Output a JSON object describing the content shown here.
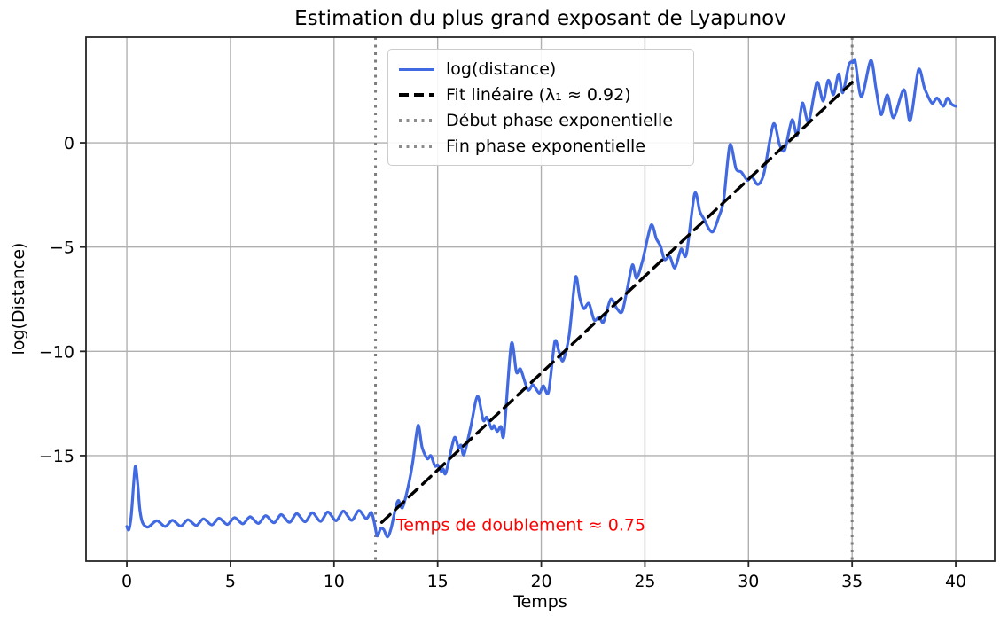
{
  "chart_data": {
    "type": "line",
    "title": "Estimation du plus grand exposant de Lyapunov",
    "xlabel": "Temps",
    "ylabel": "log(Distance)",
    "xlim": [
      -1.97,
      41.88
    ],
    "ylim": [
      -20.06,
      5.06
    ],
    "xticks": [
      0,
      5,
      10,
      15,
      20,
      25,
      30,
      35,
      40
    ],
    "yticks": [
      0,
      -5,
      -10,
      -15
    ],
    "grid": true,
    "grid_color": "#b0b0b0",
    "spine_color": "#262626",
    "legend_position": "upper-left-inside",
    "series": [
      {
        "name": "log(distance)",
        "style": "solid",
        "color": "#4169e1",
        "width": 3.2,
        "points": [
          [
            0,
            -18.4
          ],
          [
            0.1,
            -18.55
          ],
          [
            0.22,
            -17.8
          ],
          [
            0.4,
            -15.55
          ],
          [
            0.52,
            -16.3
          ],
          [
            0.62,
            -17.5
          ],
          [
            0.72,
            -18.1
          ],
          [
            0.85,
            -18.35
          ],
          [
            1.05,
            -18.42
          ],
          [
            1.45,
            -18.12
          ],
          [
            1.85,
            -18.4
          ],
          [
            2.2,
            -18.1
          ],
          [
            2.6,
            -18.38
          ],
          [
            2.95,
            -18.07
          ],
          [
            3.35,
            -18.35
          ],
          [
            3.7,
            -18.03
          ],
          [
            4.1,
            -18.32
          ],
          [
            4.45,
            -18.0
          ],
          [
            4.85,
            -18.3
          ],
          [
            5.2,
            -17.97
          ],
          [
            5.6,
            -18.27
          ],
          [
            5.95,
            -17.93
          ],
          [
            6.35,
            -18.25
          ],
          [
            6.7,
            -17.88
          ],
          [
            7.1,
            -18.22
          ],
          [
            7.45,
            -17.83
          ],
          [
            7.85,
            -18.2
          ],
          [
            8.2,
            -17.78
          ],
          [
            8.6,
            -18.17
          ],
          [
            8.95,
            -17.74
          ],
          [
            9.35,
            -18.15
          ],
          [
            9.7,
            -17.7
          ],
          [
            10.1,
            -18.12
          ],
          [
            10.45,
            -17.66
          ],
          [
            10.85,
            -18.1
          ],
          [
            11.2,
            -17.63
          ],
          [
            11.55,
            -18.02
          ],
          [
            11.8,
            -17.72
          ],
          [
            11.95,
            -18.25
          ],
          [
            12.08,
            -18.85
          ],
          [
            12.25,
            -18.5
          ],
          [
            12.4,
            -18.55
          ],
          [
            12.58,
            -18.9
          ],
          [
            12.75,
            -18.5
          ],
          [
            12.95,
            -17.6
          ],
          [
            13.1,
            -17.15
          ],
          [
            13.3,
            -17.5
          ],
          [
            13.55,
            -16.6
          ],
          [
            13.8,
            -15.3
          ],
          [
            14.05,
            -13.55
          ],
          [
            14.25,
            -14.6
          ],
          [
            14.5,
            -15.15
          ],
          [
            14.67,
            -15.0
          ],
          [
            14.87,
            -15.5
          ],
          [
            15.0,
            -15.45
          ],
          [
            15.17,
            -15.75
          ],
          [
            15.27,
            -15.64
          ],
          [
            15.4,
            -15.82
          ],
          [
            15.8,
            -14.15
          ],
          [
            16.0,
            -14.62
          ],
          [
            16.13,
            -14.5
          ],
          [
            16.27,
            -14.95
          ],
          [
            16.6,
            -13.6
          ],
          [
            16.92,
            -12.15
          ],
          [
            17.2,
            -13.3
          ],
          [
            17.37,
            -13.16
          ],
          [
            17.6,
            -13.7
          ],
          [
            17.72,
            -13.56
          ],
          [
            17.87,
            -13.84
          ],
          [
            18.05,
            -13.6
          ],
          [
            18.2,
            -13.95
          ],
          [
            18.55,
            -9.65
          ],
          [
            18.8,
            -11.0
          ],
          [
            19.0,
            -10.85
          ],
          [
            19.35,
            -11.85
          ],
          [
            19.6,
            -11.6
          ],
          [
            19.9,
            -12.0
          ],
          [
            20.1,
            -11.65
          ],
          [
            20.35,
            -11.95
          ],
          [
            20.65,
            -9.55
          ],
          [
            20.85,
            -10.0
          ],
          [
            21.05,
            -10.45
          ],
          [
            21.35,
            -9.2
          ],
          [
            21.65,
            -6.45
          ],
          [
            21.85,
            -7.4
          ],
          [
            22.05,
            -7.95
          ],
          [
            22.3,
            -7.7
          ],
          [
            22.55,
            -8.5
          ],
          [
            22.8,
            -8.35
          ],
          [
            23.0,
            -8.6
          ],
          [
            23.35,
            -7.5
          ],
          [
            23.65,
            -7.95
          ],
          [
            23.9,
            -8.1
          ],
          [
            24.15,
            -7.0
          ],
          [
            24.4,
            -5.85
          ],
          [
            24.6,
            -6.5
          ],
          [
            24.9,
            -5.6
          ],
          [
            25.3,
            -3.95
          ],
          [
            25.55,
            -4.6
          ],
          [
            25.75,
            -4.95
          ],
          [
            25.95,
            -5.6
          ],
          [
            26.2,
            -5.45
          ],
          [
            26.45,
            -6.0
          ],
          [
            26.75,
            -5.1
          ],
          [
            27.0,
            -5.35
          ],
          [
            27.4,
            -2.45
          ],
          [
            27.65,
            -3.3
          ],
          [
            27.85,
            -3.65
          ],
          [
            28.1,
            -4.15
          ],
          [
            28.3,
            -4.25
          ],
          [
            28.55,
            -3.6
          ],
          [
            28.8,
            -2.75
          ],
          [
            29.1,
            -0.1
          ],
          [
            29.4,
            -1.25
          ],
          [
            29.65,
            -1.4
          ],
          [
            29.95,
            -1.8
          ],
          [
            30.15,
            -1.6
          ],
          [
            30.45,
            -2.0
          ],
          [
            30.75,
            -1.45
          ],
          [
            31.2,
            0.9
          ],
          [
            31.5,
            -0.1
          ],
          [
            31.75,
            -0.35
          ],
          [
            32.1,
            1.1
          ],
          [
            32.35,
            0.35
          ],
          [
            32.6,
            1.9
          ],
          [
            32.9,
            1.0
          ],
          [
            33.3,
            2.9
          ],
          [
            33.6,
            2.0
          ],
          [
            33.85,
            3.0
          ],
          [
            34.1,
            2.3
          ],
          [
            34.35,
            3.3
          ],
          [
            34.55,
            2.4
          ],
          [
            34.85,
            3.75
          ],
          [
            35.05,
            3.85
          ],
          [
            35.15,
            3.9
          ],
          [
            35.45,
            2.2
          ],
          [
            35.9,
            3.95
          ],
          [
            36.15,
            2.6
          ],
          [
            36.4,
            1.35
          ],
          [
            36.7,
            2.3
          ],
          [
            37.0,
            1.2
          ],
          [
            37.5,
            2.55
          ],
          [
            37.8,
            1.05
          ],
          [
            38.2,
            3.5
          ],
          [
            38.5,
            2.6
          ],
          [
            38.85,
            1.9
          ],
          [
            39.1,
            2.15
          ],
          [
            39.4,
            1.75
          ],
          [
            39.6,
            2.15
          ],
          [
            39.8,
            1.85
          ],
          [
            40.0,
            1.75
          ]
        ]
      },
      {
        "name": "Fit linéaire (λ₁ ≈ 0.92)",
        "style": "dashed",
        "color": "#000000",
        "width": 3.4,
        "points": [
          [
            12.3,
            -18.2
          ],
          [
            35.0,
            2.9
          ]
        ]
      }
    ],
    "vlines": [
      {
        "name": "Début phase exponentielle",
        "x": 12,
        "style": "dotted",
        "color": "#7d7d7d"
      },
      {
        "name": "Fin phase exponentielle",
        "x": 35,
        "style": "dotted",
        "color": "#7d7d7d"
      }
    ],
    "annotation": {
      "text": "Temps de doublement ≈ 0.75",
      "x": 13.0,
      "y": -18.6,
      "color": "#ff0000"
    },
    "lyapunov_exponent": 0.92,
    "doubling_time": 0.75
  }
}
